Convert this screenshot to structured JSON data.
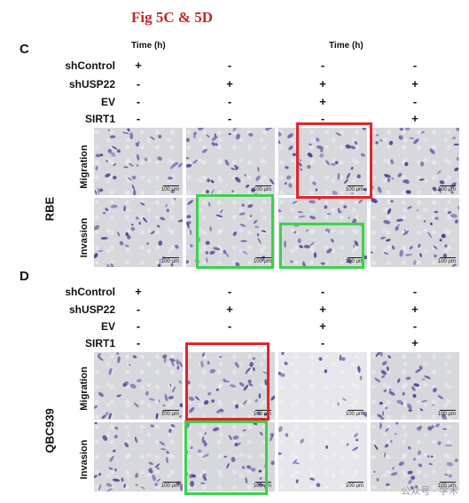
{
  "figure_title": "Fig 5C & 5D",
  "panel_c": {
    "letter": "C",
    "time_headers": [
      "Time (h)",
      "Time (h)"
    ],
    "group_label": "RBE",
    "rows": [
      {
        "label": "shControl",
        "signs": [
          "+",
          "-",
          "-",
          "-"
        ]
      },
      {
        "label": "shUSP22",
        "signs": [
          "-",
          "+",
          "+",
          "+"
        ]
      },
      {
        "label": "EV",
        "signs": [
          "-",
          "-",
          "+",
          "-"
        ]
      },
      {
        "label": "SIRT1",
        "signs": [
          "-",
          "-",
          "-",
          "+"
        ]
      }
    ],
    "image_rows": [
      "Migration",
      "Invasion"
    ]
  },
  "panel_d": {
    "letter": "D",
    "group_label": "QBC939",
    "rows": [
      {
        "label": "shControl",
        "signs": [
          "+",
          "-",
          "-",
          "-"
        ]
      },
      {
        "label": "shUSP22",
        "signs": [
          "-",
          "+",
          "+",
          "+"
        ]
      },
      {
        "label": "EV",
        "signs": [
          "-",
          "-",
          "+",
          "-"
        ]
      },
      {
        "label": "SIRT1",
        "signs": [
          "-",
          "-",
          "-",
          "+"
        ]
      }
    ],
    "image_rows": [
      "Migration",
      "Invasion"
    ]
  },
  "scale_bar_label": "100 μm",
  "highlight_colors": {
    "red": "#e3242b",
    "green": "#3cd24a"
  },
  "watermark": "公众号 · 学术"
}
